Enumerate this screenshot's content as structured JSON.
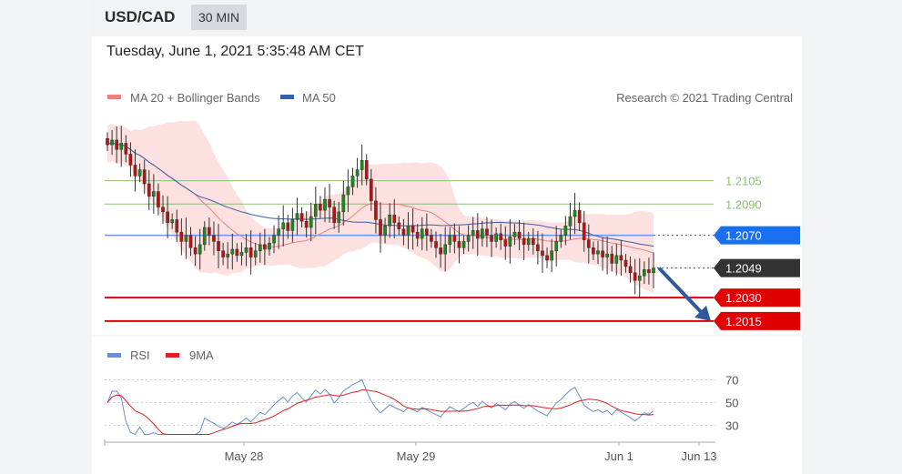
{
  "header": {
    "pair": "USD/CAD",
    "timeframe": "30 MIN"
  },
  "datetime": "Tuesday, June 1, 2021 5:35:48 AM CET",
  "legend": {
    "ma20": "MA 20 + Bollinger Bands",
    "ma50": "MA 50",
    "copyright": "Research © 2021 Trading Central"
  },
  "rsi_legend": {
    "rsi": "RSI",
    "ma9": "9MA"
  },
  "colors": {
    "ma20": "#f08080",
    "ma50": "#3a5fa8",
    "band": "#fde0e0",
    "support": "#e00000",
    "resistance_green": "#88c070",
    "current": "#333333",
    "pivot": "#1a6ef0",
    "arrow": "#2e5a9c",
    "candle_up": "#1e8a1e",
    "candle_down": "#c01010",
    "rsi": "#6a8fd8",
    "rsi_ma": "#e02020"
  },
  "chart_data": [
    {
      "type": "candlestick",
      "title": "USD/CAD 30 MIN",
      "x_ticks": [
        "May 28",
        "May 29",
        "Jun 1",
        "Jun 13"
      ],
      "ylim": [
        1.2005,
        1.2145
      ],
      "close": [
        1.2128,
        1.2131,
        1.2125,
        1.2129,
        1.2122,
        1.2115,
        1.2108,
        1.2112,
        1.2103,
        1.2095,
        1.2098,
        1.2088,
        1.2085,
        1.2078,
        1.208,
        1.2072,
        1.2066,
        1.207,
        1.2062,
        1.2058,
        1.2064,
        1.2075,
        1.207,
        1.2066,
        1.206,
        1.2056,
        1.2058,
        1.2061,
        1.2057,
        1.2059,
        1.2062,
        1.2056,
        1.206,
        1.2064,
        1.2061,
        1.2065,
        1.207,
        1.2074,
        1.2078,
        1.2073,
        1.208,
        1.2084,
        1.2079,
        1.2075,
        1.2082,
        1.209,
        1.2086,
        1.2093,
        1.2088,
        1.2078,
        1.2085,
        1.2096,
        1.2101,
        1.2108,
        1.2112,
        1.2118,
        1.2106,
        1.2092,
        1.208,
        1.207,
        1.2076,
        1.2083,
        1.2078,
        1.2074,
        1.207,
        1.2076,
        1.2072,
        1.2068,
        1.2074,
        1.207,
        1.2066,
        1.2062,
        1.2058,
        1.2064,
        1.207,
        1.2066,
        1.2062,
        1.2066,
        1.207,
        1.2073,
        1.2068,
        1.2074,
        1.207,
        1.2066,
        1.2071,
        1.2067,
        1.2063,
        1.2069,
        1.2072,
        1.2068,
        1.2064,
        1.2068,
        1.2064,
        1.206,
        1.2057,
        1.2054,
        1.206,
        1.2066,
        1.207,
        1.2076,
        1.2082,
        1.2086,
        1.2078,
        1.2067,
        1.2062,
        1.2058,
        1.206,
        1.2056,
        1.2058,
        1.2052,
        1.2057,
        1.2054,
        1.205,
        1.2046,
        1.2041,
        1.2044,
        1.2048,
        1.2046,
        1.2049
      ],
      "levels": [
        {
          "value": 1.2105,
          "label": "1.2105",
          "kind": "resistance"
        },
        {
          "value": 1.209,
          "label": "1.2090",
          "kind": "resistance"
        },
        {
          "value": 1.207,
          "label": "1.2070",
          "kind": "pivot"
        },
        {
          "value": 1.2049,
          "label": "1.2049",
          "kind": "current"
        },
        {
          "value": 1.203,
          "label": "1.2030",
          "kind": "support"
        },
        {
          "value": 1.2015,
          "label": "1.2015",
          "kind": "support"
        }
      ],
      "arrow": {
        "from": 1.2049,
        "to": 1.2015,
        "direction": "down"
      }
    },
    {
      "type": "line",
      "title": "RSI",
      "ylim": [
        20,
        80
      ],
      "y_ticks": [
        30,
        50,
        70
      ],
      "series": [
        {
          "name": "RSI"
        },
        {
          "name": "9MA"
        }
      ]
    }
  ]
}
